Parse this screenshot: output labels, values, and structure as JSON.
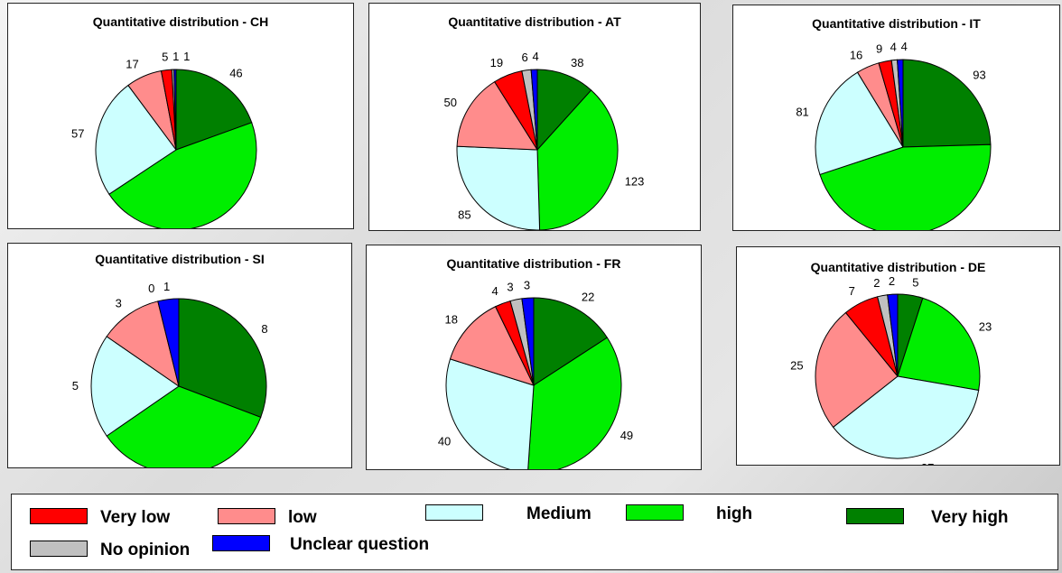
{
  "legend": {
    "very_low": "Very low",
    "low": "low",
    "medium": "Medium",
    "high": "high",
    "very_high": "Very high",
    "no_opinion": "No opinion",
    "unclear": "Unclear question"
  },
  "colors": {
    "very_low": "#ff0000",
    "low": "#ff8c8c",
    "medium": "#ccffff",
    "high": "#00ee00",
    "very_high": "#008000",
    "no_opinion": "#c0c0c0",
    "unclear": "#0000ff"
  },
  "chart_data": [
    {
      "type": "pie",
      "title": "Quantitative distribution - CH",
      "categories": [
        "Very high",
        "high",
        "Medium",
        "low",
        "Very low",
        "No opinion",
        "Unclear question"
      ],
      "values": [
        46,
        109,
        57,
        17,
        5,
        1,
        1
      ]
    },
    {
      "type": "pie",
      "title": "Quantitative distribution - AT",
      "categories": [
        "Very high",
        "high",
        "Medium",
        "low",
        "Very low",
        "No opinion",
        "Unclear question"
      ],
      "values": [
        38,
        123,
        85,
        50,
        19,
        6,
        4
      ]
    },
    {
      "type": "pie",
      "title": "Quantitative distribution - IT",
      "categories": [
        "Very high",
        "high",
        "Medium",
        "low",
        "Very low",
        "No opinion",
        "Unclear question"
      ],
      "values": [
        93,
        172,
        81,
        16,
        9,
        4,
        4
      ]
    },
    {
      "type": "pie",
      "title": "Quantitative distribution - SI",
      "categories": [
        "Very high",
        "high",
        "Medium",
        "low",
        "Very low",
        "No opinion",
        "Unclear question"
      ],
      "values": [
        8,
        9,
        5,
        3,
        0,
        0,
        1
      ]
    },
    {
      "type": "pie",
      "title": "Quantitative distribution - FR",
      "categories": [
        "Very high",
        "high",
        "Medium",
        "low",
        "Very low",
        "No opinion",
        "Unclear question"
      ],
      "values": [
        22,
        49,
        40,
        18,
        4,
        3,
        3
      ]
    },
    {
      "type": "pie",
      "title": "Quantitative distribution - DE",
      "categories": [
        "Very high",
        "high",
        "Medium",
        "low",
        "Very low",
        "No opinion",
        "Unclear question"
      ],
      "values": [
        5,
        23,
        37,
        25,
        7,
        2,
        2
      ]
    }
  ]
}
